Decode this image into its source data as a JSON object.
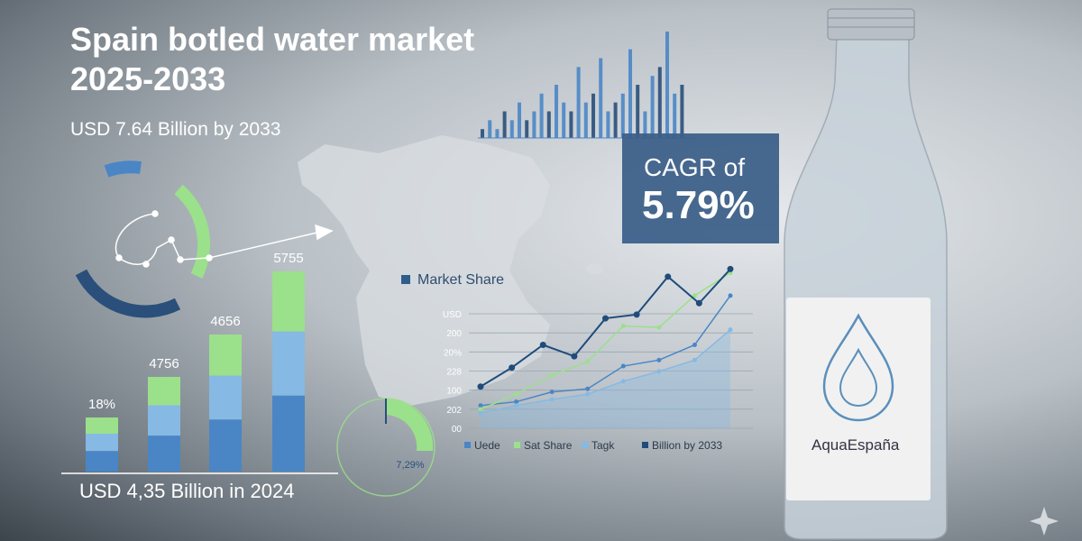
{
  "title_lines": [
    "Spain botled water market",
    "2025-2033"
  ],
  "subtitle": "USD 7.64 Billion by 2033",
  "cagr": {
    "label": "CAGR of",
    "value": "5.79%"
  },
  "market_share_title": "Market Share",
  "footer_caption": "USD 4,35 Billion in 2024",
  "brand": "AquaEspaña",
  "gauge_label": "7,29%",
  "colors": {
    "bar_blue": "#4a86c5",
    "bar_light": "#86b9e3",
    "bar_green": "#9be08a",
    "navy": "#2a4f7a",
    "cagr_box": "#3d6089"
  },
  "chart_data": [
    {
      "type": "bar",
      "categories": [
        "",
        "",
        "",
        ""
      ],
      "values": [
        18,
        4756,
        4656,
        5755
      ],
      "data_labels": [
        "18%",
        "4756",
        "4656",
        "5755"
      ]
    },
    {
      "type": "line",
      "title": "Market Share",
      "y_tick_labels": [
        "USD",
        "200",
        "20%",
        "228",
        "100",
        "202",
        "00"
      ],
      "series": [
        {
          "name": "Uede",
          "values": [
            30,
            35,
            48,
            52,
            82,
            90,
            110,
            175
          ]
        },
        {
          "name": "Sat Share",
          "values": [
            25,
            45,
            70,
            88,
            135,
            133,
            175,
            205
          ]
        },
        {
          "name": "Tagk",
          "values": [
            20,
            30,
            38,
            45,
            62,
            75,
            90,
            130
          ]
        },
        {
          "name": "Billion by 2033",
          "values": [
            55,
            80,
            110,
            95,
            145,
            150,
            200,
            165,
            210
          ]
        }
      ]
    },
    {
      "type": "bar",
      "values": [
        1,
        2,
        1,
        3,
        2,
        4,
        2,
        3,
        5,
        3,
        6,
        4,
        3,
        8,
        4,
        5,
        9,
        3,
        4,
        5,
        10,
        6,
        3,
        7,
        8,
        12,
        5,
        6
      ]
    }
  ]
}
